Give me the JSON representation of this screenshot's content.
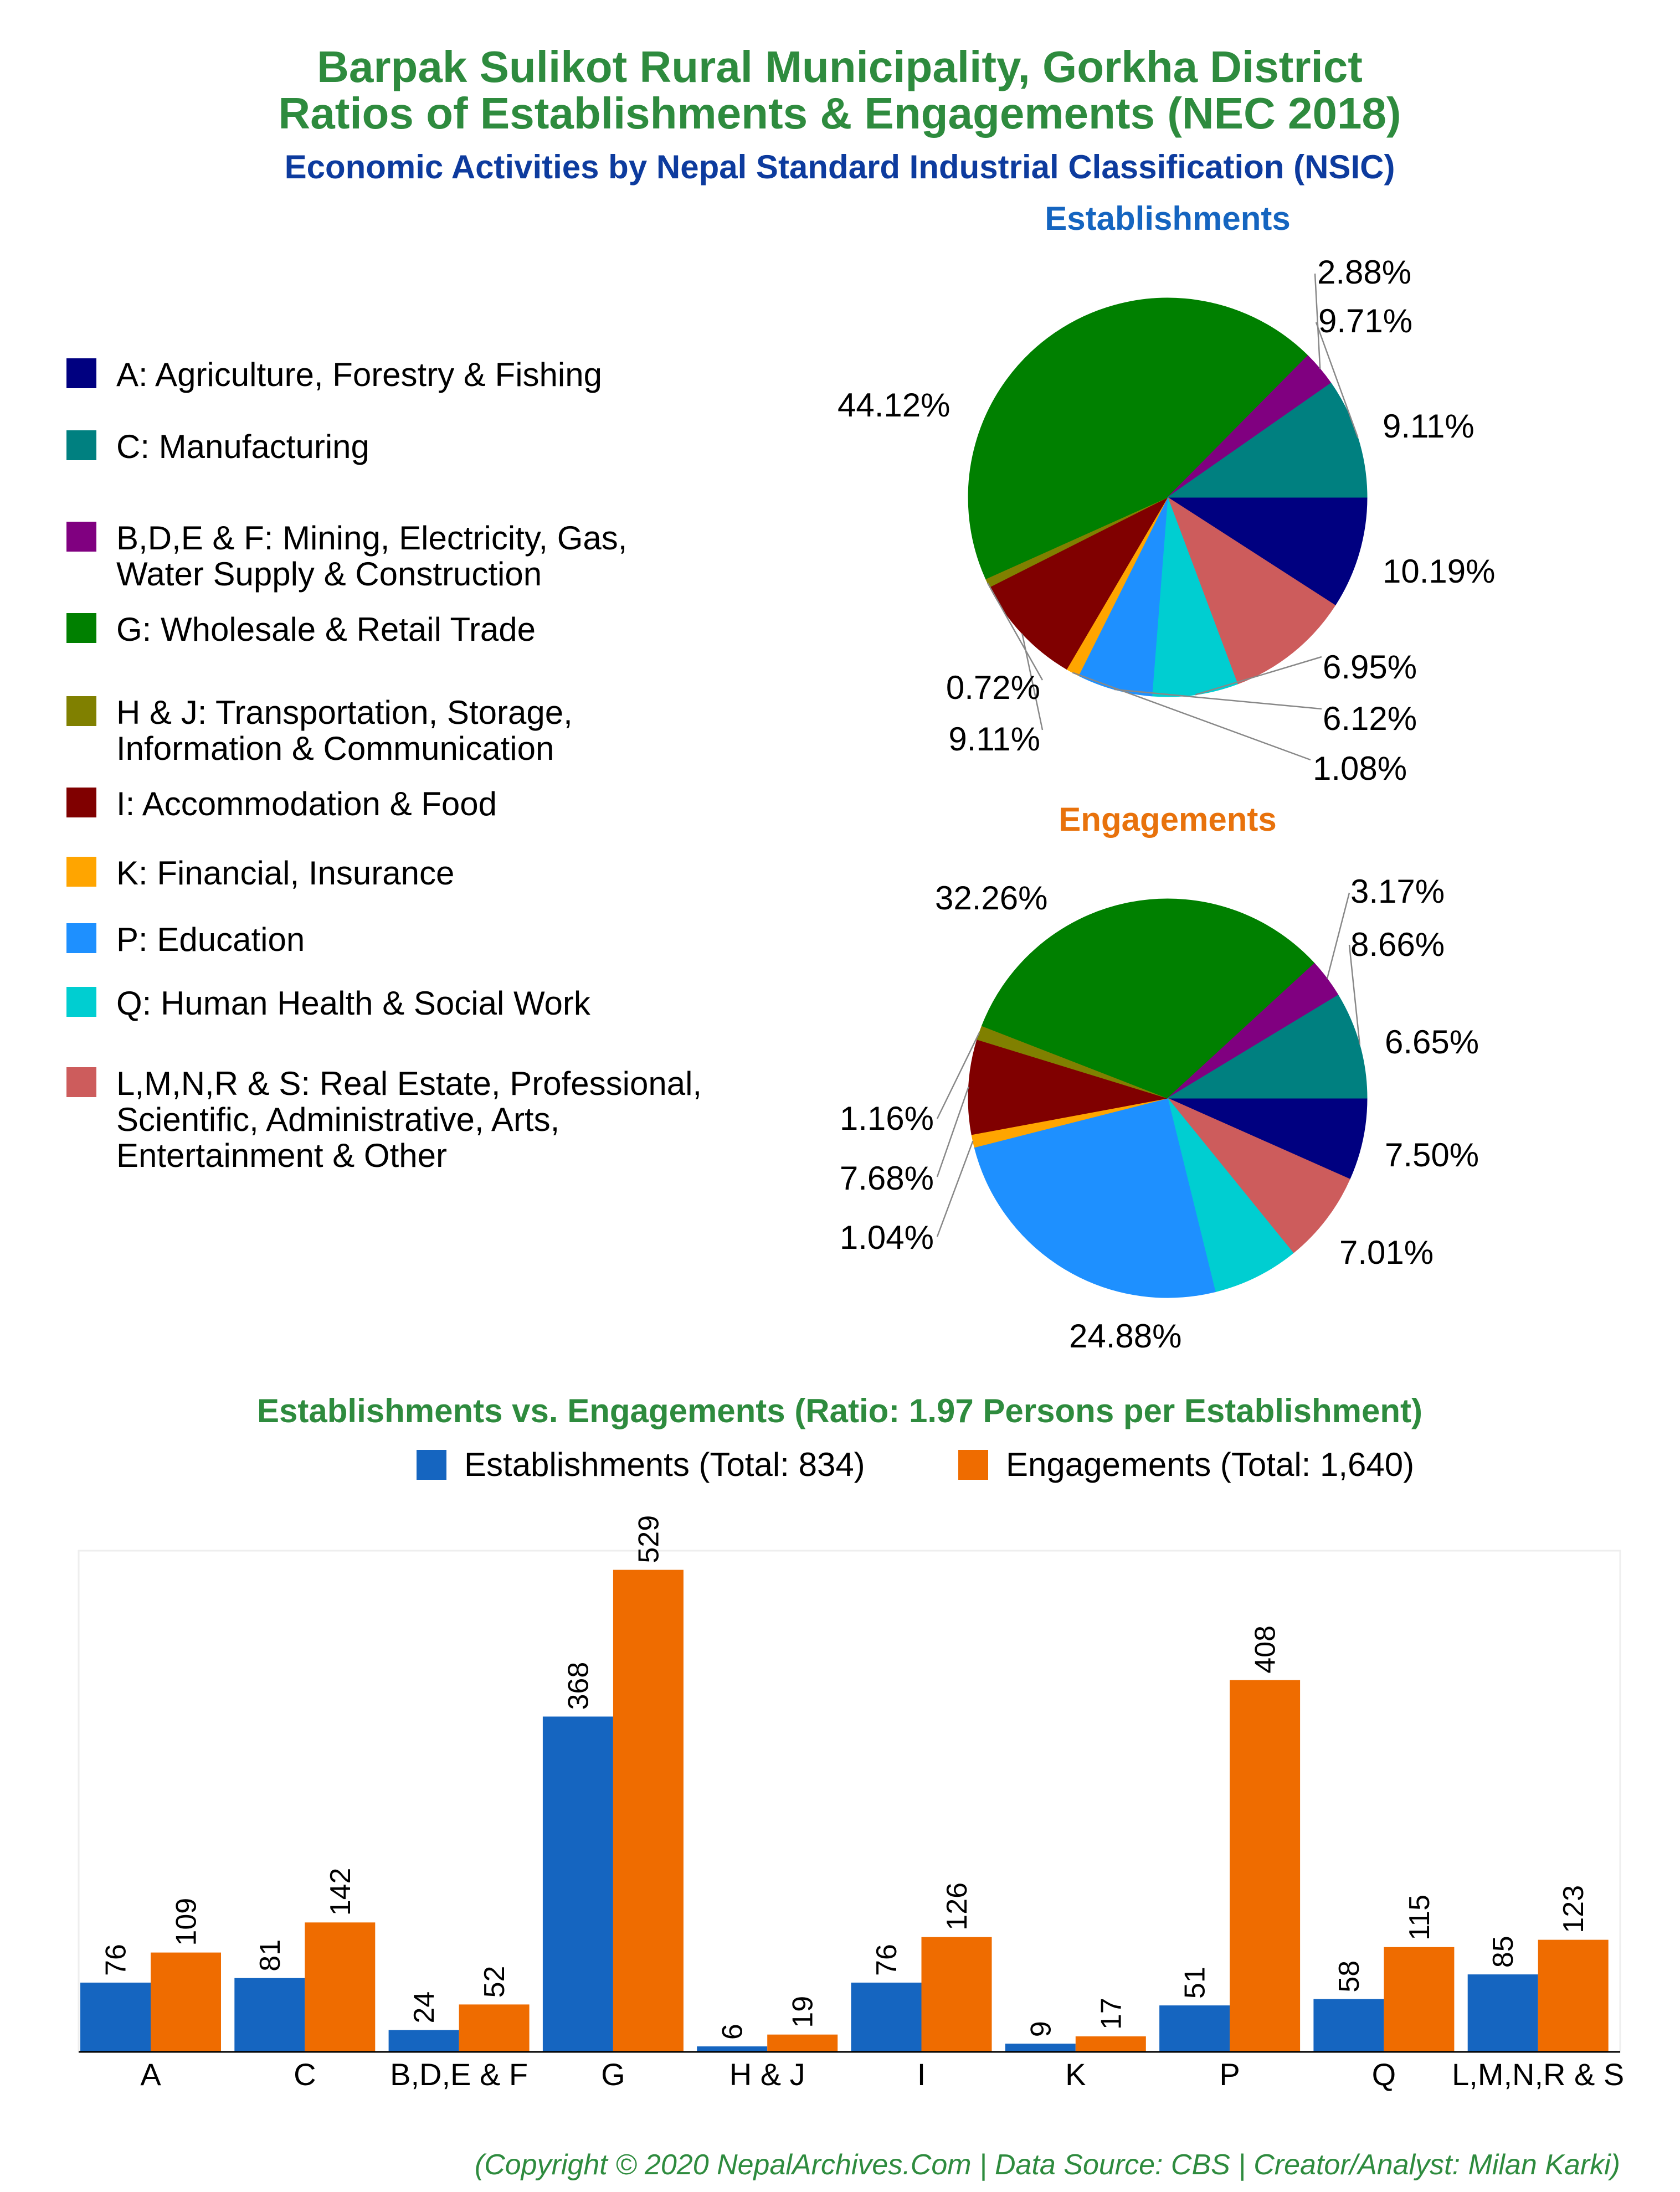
{
  "titles": {
    "line1": "Barpak Sulikot Rural Municipality, Gorkha District",
    "line2": "Ratios of Establishments & Engagements (NEC 2018)",
    "subtitle": "Economic Activities by Nepal Standard Industrial Classification (NSIC)"
  },
  "legend_items": [
    {
      "lines": [
        "A: Agriculture, Forestry & Fishing"
      ],
      "color": "#000080"
    },
    {
      "lines": [
        "C: Manufacturing"
      ],
      "color": "#008080"
    },
    {
      "lines": [
        "B,D,E & F: Mining, Electricity, Gas,",
        "Water Supply & Construction"
      ],
      "color": "#800080"
    },
    {
      "lines": [
        "G: Wholesale & Retail Trade"
      ],
      "color": "#008000"
    },
    {
      "lines": [
        "H & J: Transportation, Storage,",
        "Information & Communication"
      ],
      "color": "#808000"
    },
    {
      "lines": [
        "I: Accommodation & Food"
      ],
      "color": "#800000"
    },
    {
      "lines": [
        "K: Financial, Insurance"
      ],
      "color": "#FFA500"
    },
    {
      "lines": [
        "P: Education"
      ],
      "color": "#1E90FF"
    },
    {
      "lines": [
        "Q: Human Health & Social Work"
      ],
      "color": "#00CED1"
    },
    {
      "lines": [
        "L,M,N,R & S: Real Estate, Professional,",
        "Scientific, Administrative, Arts,",
        "Entertainment & Other"
      ],
      "color": "#CD5C5C"
    }
  ],
  "chart_data": [
    {
      "type": "pie",
      "title": "Establishments",
      "title_color": "#1565C0",
      "slices": [
        {
          "category": "A",
          "value": 9.11,
          "label": "9.11%",
          "color": "#000080"
        },
        {
          "category": "L,M,N,R & S",
          "value": 10.19,
          "label": "10.19%",
          "color": "#CD5C5C"
        },
        {
          "category": "Q",
          "value": 6.95,
          "label": "6.95%",
          "color": "#00CED1"
        },
        {
          "category": "P",
          "value": 6.12,
          "label": "6.12%",
          "color": "#1E90FF"
        },
        {
          "category": "K",
          "value": 1.08,
          "label": "1.08%",
          "color": "#FFA500"
        },
        {
          "category": "I",
          "value": 9.11,
          "label": "9.11%",
          "color": "#800000"
        },
        {
          "category": "H & J",
          "value": 0.72,
          "label": "0.72%",
          "color": "#808000"
        },
        {
          "category": "G",
          "value": 44.12,
          "label": "44.12%",
          "color": "#008000"
        },
        {
          "category": "B,D,E & F",
          "value": 2.88,
          "label": "2.88%",
          "color": "#800080"
        },
        {
          "category": "C",
          "value": 9.71,
          "label": "9.71%",
          "color": "#008080"
        }
      ]
    },
    {
      "type": "pie",
      "title": "Engagements",
      "title_color": "#E8720C",
      "slices": [
        {
          "category": "A",
          "value": 6.65,
          "label": "6.65%",
          "color": "#000080"
        },
        {
          "category": "L,M,N,R & S",
          "value": 7.5,
          "label": "7.50%",
          "color": "#CD5C5C"
        },
        {
          "category": "Q",
          "value": 7.01,
          "label": "7.01%",
          "color": "#00CED1"
        },
        {
          "category": "P",
          "value": 24.88,
          "label": "24.88%",
          "color": "#1E90FF"
        },
        {
          "category": "K",
          "value": 1.04,
          "label": "1.04%",
          "color": "#FFA500"
        },
        {
          "category": "I",
          "value": 7.68,
          "label": "7.68%",
          "color": "#800000"
        },
        {
          "category": "H & J",
          "value": 1.16,
          "label": "1.16%",
          "color": "#808000"
        },
        {
          "category": "G",
          "value": 32.26,
          "label": "32.26%",
          "color": "#008000"
        },
        {
          "category": "B,D,E & F",
          "value": 3.17,
          "label": "3.17%",
          "color": "#800080"
        },
        {
          "category": "C",
          "value": 8.66,
          "label": "8.66%",
          "color": "#008080"
        }
      ]
    },
    {
      "type": "bar",
      "title": "Establishments vs. Engagements (Ratio: 1.97 Persons per Establishment)",
      "categories": [
        "A",
        "C",
        "B,D,E & F",
        "G",
        "H & J",
        "I",
        "K",
        "P",
        "Q",
        "L,M,N,R & S"
      ],
      "series": [
        {
          "name": "Establishments (Total: 834)",
          "color": "#1565C0",
          "values": [
            76,
            81,
            24,
            368,
            6,
            76,
            9,
            51,
            58,
            85
          ]
        },
        {
          "name": "Engagements (Total: 1,640)",
          "color": "#EF6C00",
          "values": [
            109,
            142,
            52,
            529,
            19,
            126,
            17,
            408,
            115,
            123
          ]
        }
      ],
      "ylim": [
        0,
        550
      ]
    }
  ],
  "footer": "(Copyright © 2020 NepalArchives.Com | Data Source: CBS | Creator/Analyst: Milan Karki)",
  "colors": {
    "title_green": "#2E8B3E",
    "subtitle_blue": "#0D3B9E",
    "footer_green": "#2E8B3E"
  }
}
